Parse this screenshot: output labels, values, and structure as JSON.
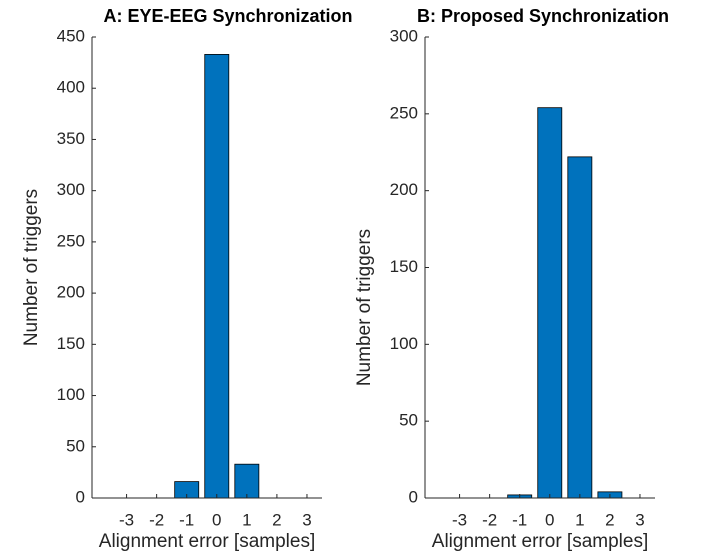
{
  "chart_data": [
    {
      "type": "bar",
      "title": "A: EYE-EEG Synchronization",
      "xlabel": "Alignment error [samples]",
      "ylabel": "Number of triggers",
      "x": [
        -3,
        -2,
        -1,
        0,
        1,
        2,
        3
      ],
      "values": [
        0,
        0,
        16,
        433,
        33,
        0,
        0
      ],
      "color": "#0072bd",
      "xlim": [
        -4.15,
        3.5
      ],
      "xticks": [
        -3,
        -2,
        -1,
        0,
        1,
        2,
        3
      ],
      "ylim": [
        0,
        450
      ],
      "yticks": [
        0,
        50,
        100,
        150,
        200,
        250,
        300,
        350,
        400,
        450
      ]
    },
    {
      "type": "bar",
      "title": "B: Proposed Synchronization",
      "xlabel": "Alignment error [samples]",
      "ylabel": "Number of triggers",
      "x": [
        -3,
        -2,
        -1,
        0,
        1,
        2,
        3
      ],
      "values": [
        0,
        0,
        2,
        254,
        222,
        4,
        0
      ],
      "color": "#0072bd",
      "xlim": [
        -4.15,
        3.5
      ],
      "xticks": [
        -3,
        -2,
        -1,
        0,
        1,
        2,
        3
      ],
      "ylim": [
        0,
        300
      ],
      "yticks": [
        0,
        50,
        100,
        150,
        200,
        250,
        300
      ]
    }
  ]
}
